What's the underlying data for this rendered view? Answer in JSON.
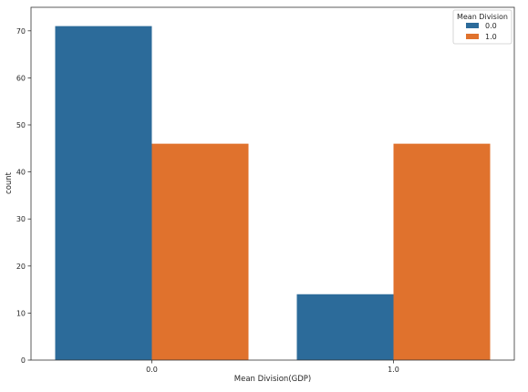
{
  "chart_data": {
    "type": "bar",
    "title": "",
    "xlabel": "Mean Division(GDP)",
    "ylabel": "count",
    "categories": [
      "0.0",
      "1.0"
    ],
    "ylim": [
      0,
      75
    ],
    "yticks": [
      0,
      10,
      20,
      30,
      40,
      50,
      60,
      70
    ],
    "grid": false,
    "legend": {
      "title": "Mean Division",
      "placement": "top-right"
    },
    "series": [
      {
        "name": "0.0",
        "color": "#2c6b9a",
        "values": [
          71,
          14
        ]
      },
      {
        "name": "1.0",
        "color": "#e0722d",
        "values": [
          46,
          46
        ]
      }
    ]
  }
}
